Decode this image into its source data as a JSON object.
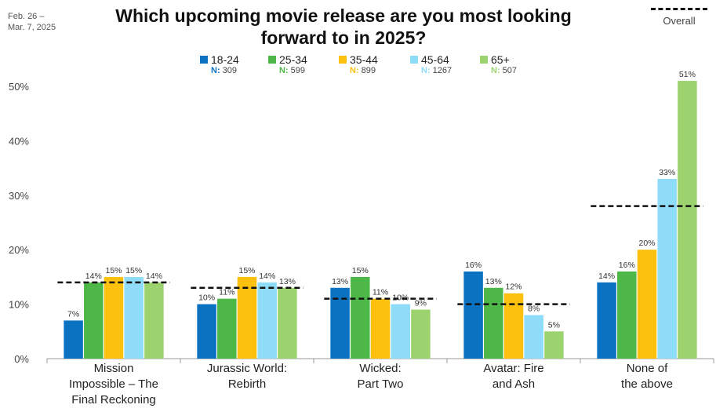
{
  "header": {
    "date_range": "Feb. 26 –\nMar. 7, 2025",
    "title": "Which upcoming movie release are you most looking forward to in 2025?",
    "overall_legend": "Overall"
  },
  "legend": [
    {
      "label": "18-24",
      "n_prefix": "N:",
      "n_value": "309",
      "color": "#0A72C0"
    },
    {
      "label": "25-34",
      "n_prefix": "N:",
      "n_value": "599",
      "color": "#4DB848"
    },
    {
      "label": "35-44",
      "n_prefix": "N:",
      "n_value": "899",
      "color": "#FCC00E"
    },
    {
      "label": "45-64",
      "n_prefix": "N:",
      "n_value": "1267",
      "color": "#8FDCF8"
    },
    {
      "label": "65+",
      "n_prefix": "N:",
      "n_value": "507",
      "color": "#9CD36E"
    }
  ],
  "chart_data": {
    "type": "bar",
    "title": "Which upcoming movie release are you most looking forward to in 2025?",
    "categories": [
      "Mission\nImpossible – The\nFinal Reckoning",
      "Jurassic World:\nRebirth",
      "Wicked:\nPart Two",
      "Avatar: Fire\nand Ash",
      "None of\nthe above"
    ],
    "series": [
      {
        "name": "18-24",
        "color": "#0A72C0",
        "values": [
          7,
          10,
          13,
          16,
          14
        ]
      },
      {
        "name": "25-34",
        "color": "#4DB848",
        "values": [
          14,
          11,
          15,
          13,
          16
        ]
      },
      {
        "name": "35-44",
        "color": "#FCC00E",
        "values": [
          15,
          15,
          11,
          12,
          20
        ]
      },
      {
        "name": "45-64",
        "color": "#8FDCF8",
        "values": [
          15,
          14,
          10,
          8,
          33
        ]
      },
      {
        "name": "65+",
        "color": "#9CD36E",
        "values": [
          14,
          13,
          9,
          5,
          51
        ]
      }
    ],
    "data_labels": [
      [
        "7%",
        "10%",
        "13%",
        "16%",
        "14%"
      ],
      [
        "14%",
        "11%",
        "15%",
        "13%",
        "16%"
      ],
      [
        "15%",
        "15%",
        "11%",
        "12%",
        "20%"
      ],
      [
        "15%",
        "14%",
        "10%",
        "8%",
        "33%"
      ],
      [
        "14%",
        "13%",
        "9%",
        "5%",
        "51%"
      ]
    ],
    "overall": {
      "name": "Overall",
      "values": [
        14,
        13,
        11,
        10,
        28
      ]
    },
    "ylim": [
      0,
      50
    ],
    "yticks": [
      "0%",
      "10%",
      "20%",
      "30%",
      "40%",
      "50%"
    ],
    "grid": false,
    "legend_position": "top"
  }
}
